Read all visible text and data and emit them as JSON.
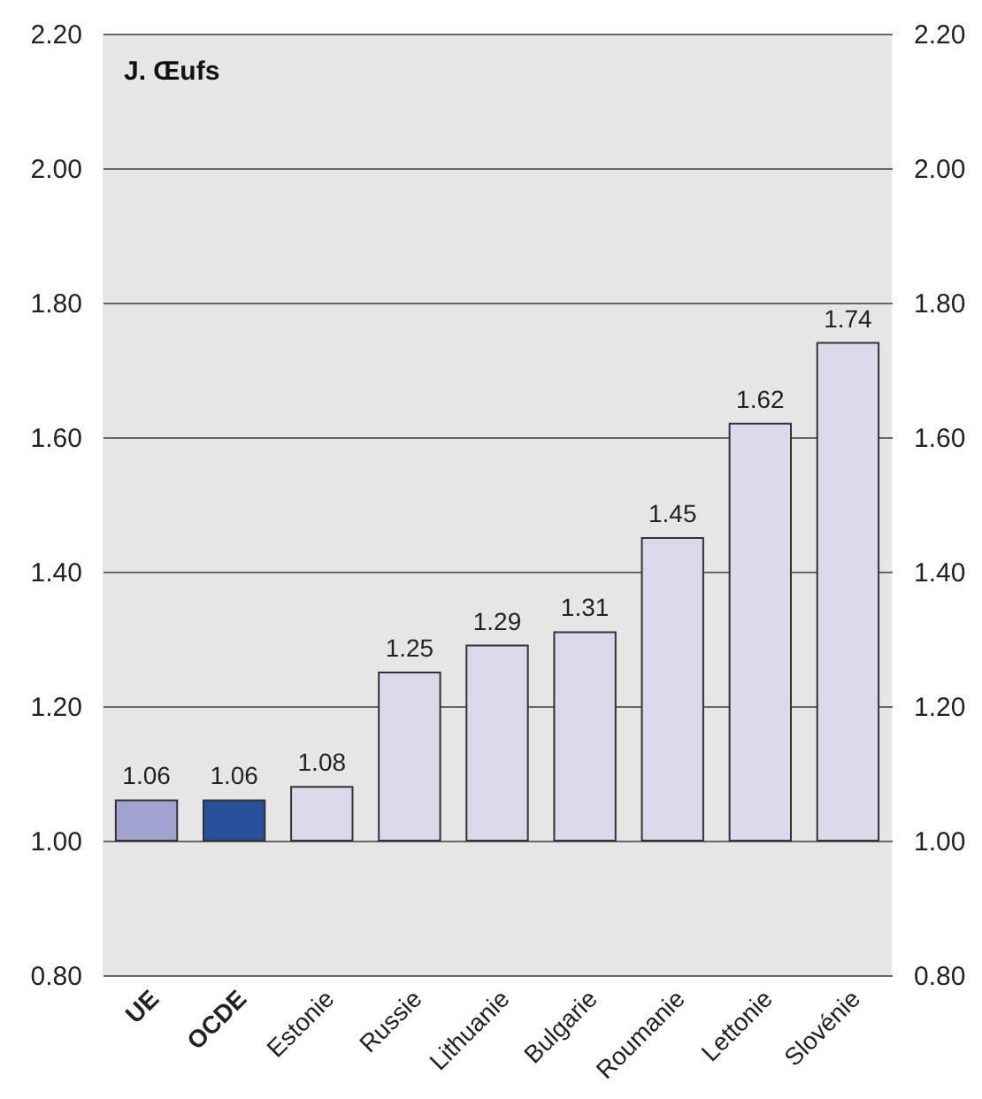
{
  "chart_data": {
    "type": "bar",
    "title": "J. Œufs",
    "categories": [
      "UE",
      "OCDE",
      "Estonie",
      "Russie",
      "Lithuanie",
      "Bulgarie",
      "Roumanie",
      "Lettonie",
      "Slovénie"
    ],
    "base": [
      1,
      1,
      1,
      1,
      1,
      1,
      1,
      1,
      1
    ],
    "values": [
      0.06,
      0.06,
      0.08,
      0.25,
      0.29,
      0.31,
      0.45,
      0.62,
      0.74
    ],
    "value_labels": [
      "1.06",
      "1.06",
      "1.08",
      "1.25",
      "1.29",
      "1.31",
      "1.45",
      "1.62",
      "1.74"
    ],
    "colors": [
      "#a3a3cf",
      "#27509b",
      "#dadaea",
      "#dadaea",
      "#dadaea",
      "#dadaea",
      "#dadaea",
      "#dadaea",
      "#dadaea"
    ],
    "ylim": [
      0.8,
      2.2
    ],
    "yticks": [
      {
        "value": 0.8,
        "label": "0.80"
      },
      {
        "value": 1,
        "label": "1.00"
      },
      {
        "value": 1.2,
        "label": "1.20"
      },
      {
        "value": 1.4,
        "label": "1.40"
      },
      {
        "value": 1.6,
        "label": "1.60"
      },
      {
        "value": 1.8,
        "label": "1.80"
      },
      {
        "value": 2,
        "label": "2.00"
      },
      {
        "value": 2.2,
        "label": "2.20"
      }
    ],
    "y2lim": [
      0.8,
      2.2
    ],
    "y2ticks": [
      {
        "value": 0.8,
        "label": "0.80"
      },
      {
        "value": 1,
        "label": "1.00"
      },
      {
        "value": 1.2,
        "label": "1.20"
      },
      {
        "value": 1.4,
        "label": "1.40"
      },
      {
        "value": 1.6,
        "label": "1.60"
      },
      {
        "value": 1.8,
        "label": "1.80"
      },
      {
        "value": 2,
        "label": "2.00"
      },
      {
        "value": 2.2,
        "label": "2.20"
      }
    ],
    "grid": "y"
  }
}
